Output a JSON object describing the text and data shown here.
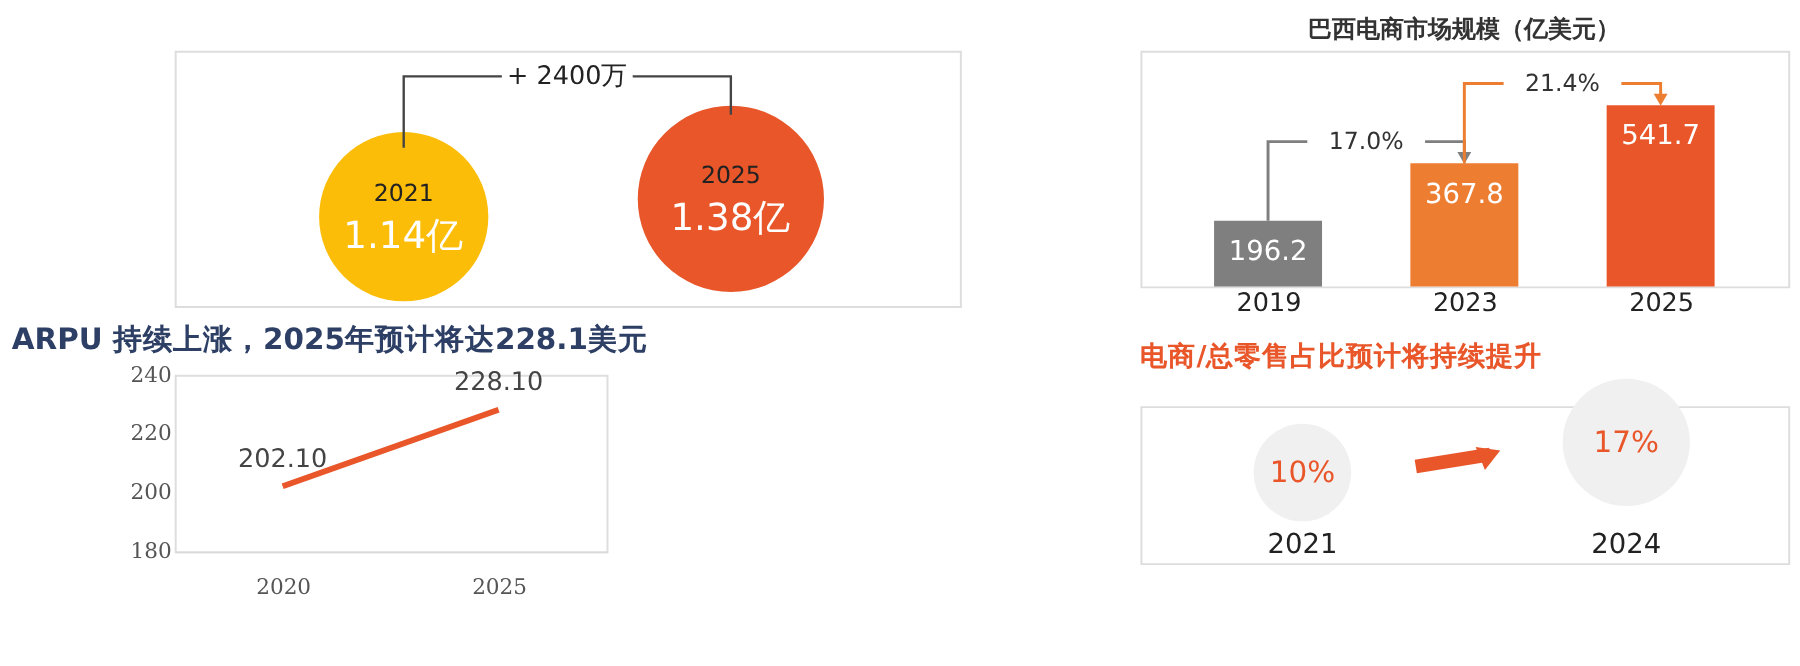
{
  "chart_data": [
    {
      "type": "other",
      "categories": [
        "2021",
        "2025"
      ],
      "values": [
        1.14,
        1.38
      ],
      "value_labels": [
        "1.14亿",
        "1.38亿"
      ],
      "colors": [
        "#fbbd08",
        "#e8562a"
      ],
      "annotations": [
        "+ 2400万"
      ]
    },
    {
      "type": "line",
      "title": "ARPU 持续上涨，2025年预计将达228.1美元",
      "x": [
        2020,
        2025
      ],
      "values": [
        202.1,
        228.1
      ],
      "value_labels": [
        "202.10",
        "228.10"
      ],
      "color": "#e8562a",
      "xlim": [
        2017.5,
        2027.5
      ],
      "xticks": [
        2020,
        2025
      ],
      "ylim": [
        180,
        240
      ],
      "yticks": [
        180,
        200,
        220,
        240
      ],
      "grid": false,
      "line_style": "solid"
    },
    {
      "type": "bar",
      "title": "巴西电商市场规模（亿美元）",
      "categories": [
        "2019",
        "2023",
        "2025"
      ],
      "values": [
        196.2,
        367.8,
        541.7
      ],
      "colors": [
        "#7f7f7f",
        "#ed7d31",
        "#e8562a"
      ],
      "data_labels": true,
      "annotations": [
        "17.0%",
        "21.4%"
      ],
      "tick_labels": "x"
    },
    {
      "type": "other",
      "title": "电商/总零售占比预计将持续提升",
      "categories": [
        "2021",
        "2024"
      ],
      "values": [
        10,
        17
      ],
      "value_labels": [
        "10%",
        "17%"
      ],
      "colors": [
        "#f0f0f0",
        "#f0f0f0"
      ]
    }
  ]
}
